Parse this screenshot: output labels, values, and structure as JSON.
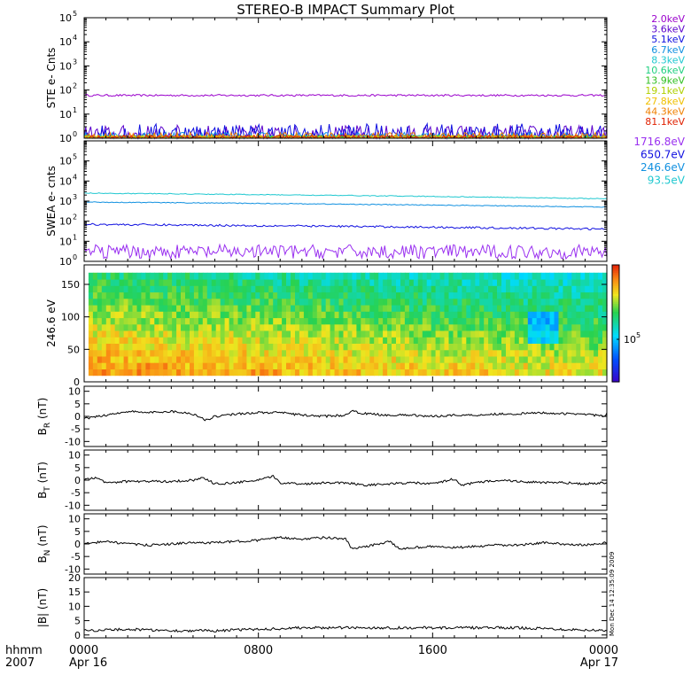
{
  "title": "STEREO-B IMPACT Summary Plot",
  "footer": {
    "hhmm_label": "hhmm",
    "year_label": "2007",
    "x_ticks": [
      {
        "time": "0000",
        "date": "Apr 16",
        "hour": 0
      },
      {
        "time": "0800",
        "date": "",
        "hour": 8
      },
      {
        "time": "1600",
        "date": "",
        "hour": 16
      },
      {
        "time": "0000",
        "date": "Apr 17",
        "hour": 24
      }
    ]
  },
  "side_stamp": "Mon Dec 14 12:35:09 2009",
  "colors": {
    "trace": "#000000",
    "frame": "#000000"
  },
  "chart_data": [
    {
      "id": "ste",
      "type": "line",
      "ylabel": "STE e- Cnts",
      "yscale": "log",
      "ylim": [
        1,
        100000
      ],
      "y_tick_bases": [
        "10",
        "10",
        "10",
        "10",
        "10",
        "10"
      ],
      "y_tick_exps": [
        "0",
        "1",
        "2",
        "3",
        "4",
        "5"
      ],
      "xlim": [
        0,
        24
      ],
      "legend_position": "right",
      "series": [
        {
          "name": "2.0keV",
          "color": "#9a00cc",
          "level": 60,
          "noise": 0.04
        },
        {
          "name": "3.6keV",
          "color": "#5a00cc",
          "level": 1.25,
          "noise": 0.45
        },
        {
          "name": "5.1keV",
          "color": "#1010e0",
          "level": 1.3,
          "noise": 0.5
        },
        {
          "name": "6.7keV",
          "color": "#1090e0",
          "level": 1.1,
          "noise": 0.2
        },
        {
          "name": "8.3keV",
          "color": "#20c8d0",
          "level": 1.05,
          "noise": 0.1
        },
        {
          "name": "10.6keV",
          "color": "#20d080",
          "level": 1.05,
          "noise": 0.1
        },
        {
          "name": "13.9keV",
          "color": "#30c020",
          "level": 1.05,
          "noise": 0.1
        },
        {
          "name": "19.1keV",
          "color": "#b0d000",
          "level": 1.05,
          "noise": 0.1
        },
        {
          "name": "27.8keV",
          "color": "#f0c000",
          "level": 1.05,
          "noise": 0.1
        },
        {
          "name": "44.3keV",
          "color": "#f08000",
          "level": 1.1,
          "noise": 0.2
        },
        {
          "name": "81.1keV",
          "color": "#e02000",
          "level": 1.05,
          "noise": 0.1
        }
      ]
    },
    {
      "id": "swea",
      "type": "line",
      "ylabel": "SWEA e- cnts",
      "yscale": "log",
      "ylim": [
        1,
        1000000
      ],
      "y_tick_bases": [
        "10",
        "10",
        "10",
        "10",
        "10",
        "10"
      ],
      "y_tick_exps": [
        "0",
        "1",
        "2",
        "3",
        "4",
        "5"
      ],
      "xlim": [
        0,
        24
      ],
      "legend_position": "right",
      "series": [
        {
          "name": "1716.8eV",
          "color": "#9a30f0",
          "level": 3,
          "noise": 0.35
        },
        {
          "name": "650.7eV",
          "color": "#1010e0",
          "level": 70,
          "noise": 0.05,
          "end_level": 40
        },
        {
          "name": "246.6eV",
          "color": "#1090e0",
          "level": 900,
          "noise": 0.02,
          "end_level": 500
        },
        {
          "name": "93.5eV",
          "color": "#20c8d0",
          "level": 2500,
          "noise": 0.02,
          "end_level": 1300
        }
      ]
    },
    {
      "id": "pad",
      "type": "heatmap",
      "ylabel": "246.6 eV",
      "ylim": [
        0,
        180
      ],
      "y_ticks": [
        "0",
        "50",
        "100",
        "150"
      ],
      "xlim": [
        0,
        24
      ],
      "colorbar_tick_base": "10",
      "colorbar_tick_exp": "5"
    },
    {
      "id": "br",
      "type": "line",
      "ylabel_main": "B",
      "ylabel_sub": "R",
      "ylabel_unit": " (nT)",
      "ylim": [
        -12,
        12
      ],
      "y_ticks": [
        "-10",
        "-5",
        "0",
        "5",
        "10"
      ],
      "xlim": [
        0,
        24
      ],
      "series": [
        {
          "points": [
            [
              0,
              -1
            ],
            [
              1,
              0.5
            ],
            [
              2,
              2
            ],
            [
              3,
              1.5
            ],
            [
              4,
              2
            ],
            [
              5,
              1
            ],
            [
              5.6,
              -1.5
            ],
            [
              6,
              0
            ],
            [
              7,
              1
            ],
            [
              8,
              1.5
            ],
            [
              9,
              1.5
            ],
            [
              10,
              0.5
            ],
            [
              11,
              0
            ],
            [
              12,
              0.5
            ],
            [
              12.3,
              2
            ],
            [
              13,
              1
            ],
            [
              14,
              0.5
            ],
            [
              15,
              0.5
            ],
            [
              16,
              0
            ],
            [
              17,
              0.5
            ],
            [
              18,
              0.5
            ],
            [
              19,
              1
            ],
            [
              20,
              1
            ],
            [
              21,
              1.5
            ],
            [
              22,
              1
            ],
            [
              23,
              1
            ],
            [
              23.8,
              0
            ],
            [
              24,
              1
            ]
          ]
        }
      ]
    },
    {
      "id": "bt",
      "type": "line",
      "ylabel_main": "B",
      "ylabel_sub": "T",
      "ylabel_unit": " (nT)",
      "ylim": [
        -12,
        12
      ],
      "y_ticks": [
        "-10",
        "-5",
        "0",
        "5",
        "10"
      ],
      "xlim": [
        0,
        24
      ],
      "series": [
        {
          "points": [
            [
              0,
              0
            ],
            [
              0.5,
              1
            ],
            [
              1,
              -1
            ],
            [
              2,
              -0.5
            ],
            [
              3,
              -0.5
            ],
            [
              4,
              -0.5
            ],
            [
              5,
              0
            ],
            [
              5.5,
              1
            ],
            [
              6,
              -1.5
            ],
            [
              7,
              -1
            ],
            [
              8,
              0
            ],
            [
              8.7,
              1.5
            ],
            [
              9,
              -1
            ],
            [
              10,
              -1.5
            ],
            [
              11,
              -1
            ],
            [
              12,
              -1
            ],
            [
              13,
              -2
            ],
            [
              14,
              -1.5
            ],
            [
              15,
              -1
            ],
            [
              16,
              -1.5
            ],
            [
              17,
              0.5
            ],
            [
              17.3,
              -2
            ],
            [
              18,
              -1
            ],
            [
              19,
              0
            ],
            [
              20,
              -0.5
            ],
            [
              21,
              -1
            ],
            [
              22,
              -1
            ],
            [
              23,
              -1.5
            ],
            [
              24,
              -1
            ]
          ]
        }
      ]
    },
    {
      "id": "bn",
      "type": "line",
      "ylabel_main": "B",
      "ylabel_sub": "N",
      "ylabel_unit": " (nT)",
      "ylim": [
        -12,
        12
      ],
      "y_ticks": [
        "-10",
        "-5",
        "0",
        "5",
        "10"
      ],
      "xlim": [
        0,
        24
      ],
      "series": [
        {
          "points": [
            [
              0,
              0
            ],
            [
              1,
              1
            ],
            [
              2,
              0
            ],
            [
              3,
              -0.5
            ],
            [
              4,
              0
            ],
            [
              5,
              0.5
            ],
            [
              6,
              0.5
            ],
            [
              7,
              1
            ],
            [
              8,
              1.5
            ],
            [
              9,
              2.5
            ],
            [
              10,
              2
            ],
            [
              11,
              2.5
            ],
            [
              12,
              2
            ],
            [
              12.3,
              -2
            ],
            [
              13,
              -1
            ],
            [
              14,
              1
            ],
            [
              14.5,
              -2
            ],
            [
              15,
              -1.5
            ],
            [
              16,
              -1
            ],
            [
              17,
              -1.5
            ],
            [
              18,
              -1
            ],
            [
              19,
              -0.5
            ],
            [
              20,
              -0.5
            ],
            [
              21,
              0.5
            ],
            [
              22,
              0
            ],
            [
              23,
              -0.5
            ],
            [
              24,
              0.5
            ]
          ]
        }
      ]
    },
    {
      "id": "bmag",
      "type": "line",
      "ylabel_main": "|B| (nT)",
      "ylim": [
        -1,
        20
      ],
      "y_ticks": [
        "0",
        "5",
        "10",
        "15",
        "20"
      ],
      "y_tick_values": [
        0,
        5,
        10,
        15,
        20
      ],
      "xlim": [
        0,
        24
      ],
      "series": [
        {
          "points": [
            [
              0,
              1.5
            ],
            [
              2,
              2
            ],
            [
              4,
              1.5
            ],
            [
              6,
              1.5
            ],
            [
              8,
              2
            ],
            [
              10,
              2.5
            ],
            [
              12,
              2.5
            ],
            [
              14,
              2.5
            ],
            [
              16,
              2.5
            ],
            [
              18,
              2.5
            ],
            [
              20,
              2.5
            ],
            [
              22,
              2
            ],
            [
              24,
              1.5
            ]
          ]
        }
      ]
    }
  ]
}
